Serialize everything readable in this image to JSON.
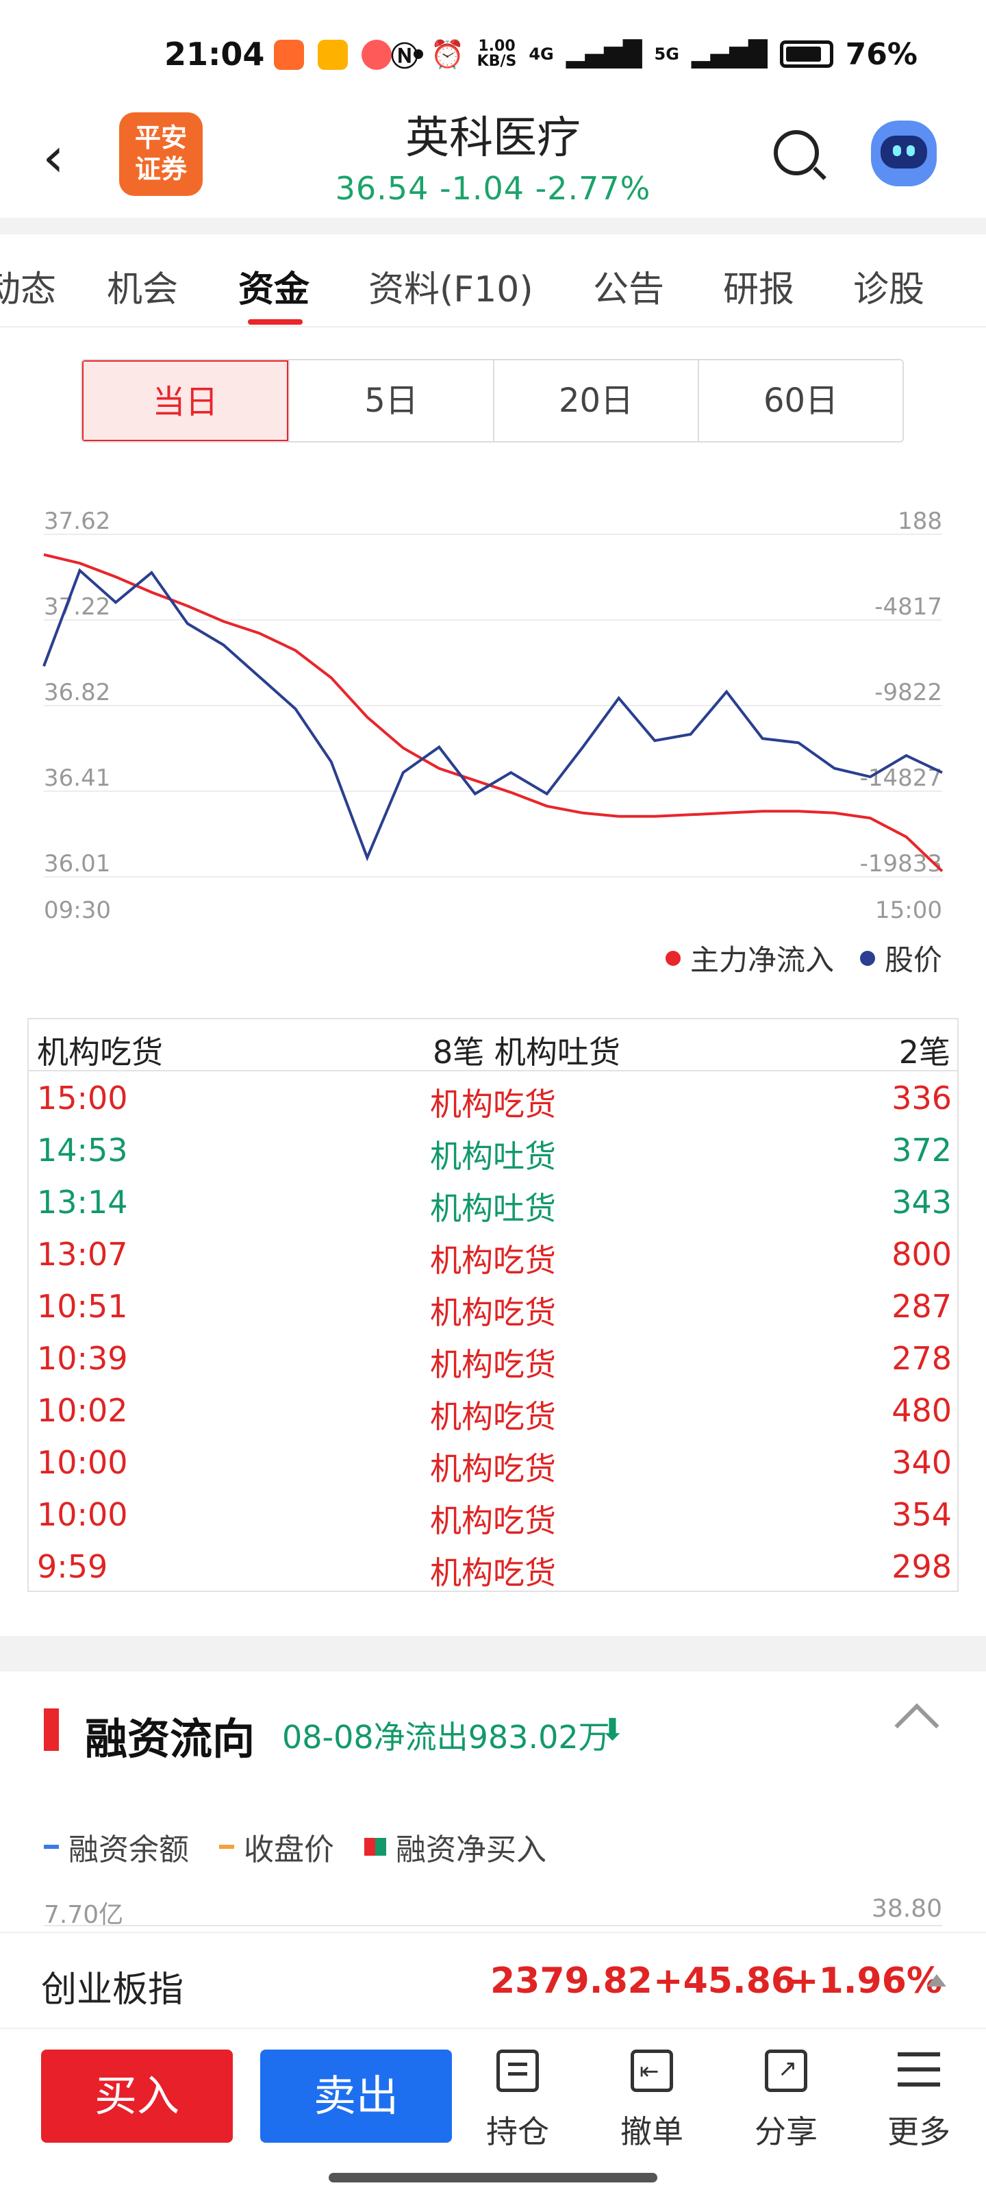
{
  "status_bar": {
    "time": "21:04",
    "net_speed_top": "1.00",
    "net_speed_bottom": "KB/S",
    "signal1": "4G",
    "signal2": "5G",
    "battery": "76%"
  },
  "header": {
    "back_icon": "chevron-left-icon",
    "broker_logo_line1": "平安",
    "broker_logo_line2": "证券",
    "stock_name": "英科医疗",
    "price": "36.54",
    "change": "-1.04",
    "change_pct": "-2.77%",
    "quote_color": "#1aa36a"
  },
  "tabs": [
    {
      "label": "动态",
      "active": false
    },
    {
      "label": "机会",
      "active": false
    },
    {
      "label": "资金",
      "active": true
    },
    {
      "label": "资料(F10)",
      "active": false
    },
    {
      "label": "公告",
      "active": false
    },
    {
      "label": "研报",
      "active": false
    },
    {
      "label": "诊股",
      "active": false
    }
  ],
  "periods": [
    {
      "label": "当日",
      "active": true
    },
    {
      "label": "5日",
      "active": false
    },
    {
      "label": "20日",
      "active": false
    },
    {
      "label": "60日",
      "active": false
    }
  ],
  "chart_data": {
    "type": "line",
    "x_start": "09:30",
    "x_end": "15:00",
    "y_left_ticks": [
      "37.62",
      "37.22",
      "36.82",
      "36.41",
      "36.01"
    ],
    "y_right_ticks": [
      "188",
      "-4817",
      "-9822",
      "-14827",
      "-19833"
    ],
    "series": [
      {
        "name": "主力净流入",
        "color": "#e8262b",
        "values": [
          -1000,
          -1500,
          -2300,
          -3200,
          -4000,
          -4900,
          -5600,
          -6600,
          -8200,
          -10500,
          -12300,
          -13500,
          -14200,
          -14900,
          -15700,
          -16100,
          -16300,
          -16300,
          -16200,
          -16100,
          -16000,
          -16000,
          -16100,
          -16400,
          -17500,
          -19500
        ]
      },
      {
        "name": "股价",
        "color": "#2a3f8f",
        "values": [
          37.0,
          37.45,
          37.3,
          37.44,
          37.2,
          37.1,
          36.95,
          36.8,
          36.55,
          36.1,
          36.5,
          36.62,
          36.4,
          36.5,
          36.4,
          36.62,
          36.85,
          36.65,
          36.68,
          36.88,
          36.66,
          36.64,
          36.52,
          36.48,
          36.58,
          36.5
        ]
      }
    ]
  },
  "legend": {
    "main_flow": "主力净流入",
    "price": "股价",
    "main_flow_color": "#e8262b",
    "price_color": "#2a3f8f"
  },
  "block_trades": {
    "header_buy": "机构吃货",
    "buy_count": "8笔",
    "header_sell": "机构吐货",
    "sell_count": "2笔",
    "rows": [
      {
        "time": "15:00",
        "kind": "机构吃货",
        "value": "336",
        "side": "buy"
      },
      {
        "time": "14:53",
        "kind": "机构吐货",
        "value": "372",
        "side": "sell"
      },
      {
        "time": "13:14",
        "kind": "机构吐货",
        "value": "343",
        "side": "sell"
      },
      {
        "time": "13:07",
        "kind": "机构吃货",
        "value": "800",
        "side": "buy"
      },
      {
        "time": "10:51",
        "kind": "机构吃货",
        "value": "287",
        "side": "buy"
      },
      {
        "time": "10:39",
        "kind": "机构吃货",
        "value": "278",
        "side": "buy"
      },
      {
        "time": "10:02",
        "kind": "机构吃货",
        "value": "480",
        "side": "buy"
      },
      {
        "time": "10:00",
        "kind": "机构吃货",
        "value": "340",
        "side": "buy"
      },
      {
        "time": "10:00",
        "kind": "机构吃货",
        "value": "354",
        "side": "buy"
      },
      {
        "time": "9:59",
        "kind": "机构吃货",
        "value": "298",
        "side": "buy"
      }
    ]
  },
  "financing": {
    "title": "融资流向",
    "summary": "08-08净流出983.02万",
    "legend_balance": "融资余额",
    "legend_close": "收盘价",
    "legend_net_buy": "融资净买入",
    "y_left_top": "7.70亿",
    "y_right_top": "38.80"
  },
  "index_bar": {
    "name": "创业板指",
    "value": "2379.82",
    "change": "+45.86",
    "change_pct": "+1.96%"
  },
  "toolbar": {
    "buy": "买入",
    "sell": "卖出",
    "position": "持仓",
    "cancel": "撤单",
    "share": "分享",
    "more": "更多"
  }
}
